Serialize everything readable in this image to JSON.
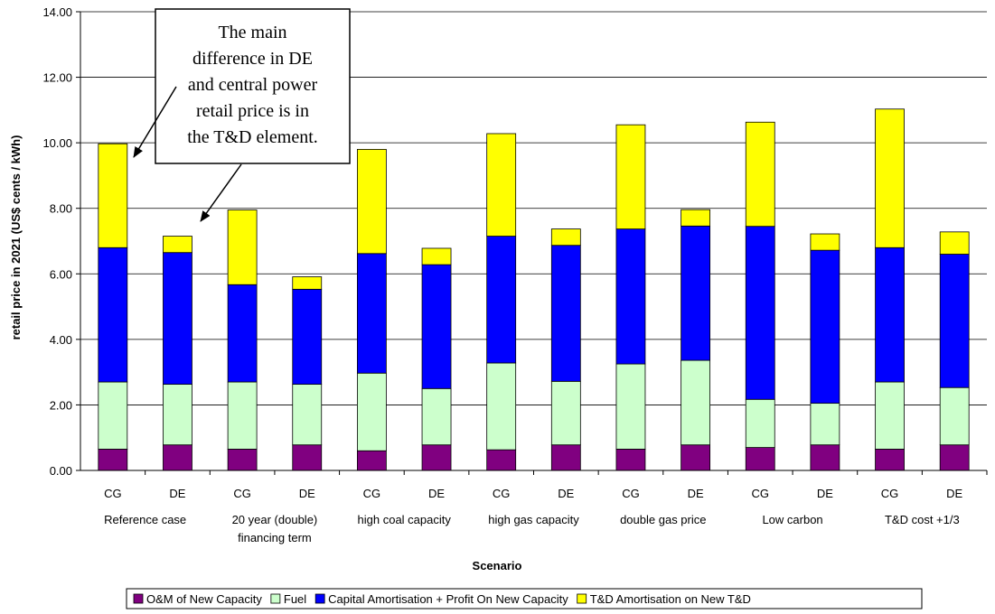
{
  "chart_data": {
    "type": "bar",
    "stacked": true,
    "ylabel": "retail price in 2021 (US$ cents / kWh)",
    "xlabel": "Scenario",
    "ylim": [
      0,
      14
    ],
    "ytick_step": 2,
    "ytick_labels": [
      "0.00",
      "2.00",
      "4.00",
      "6.00",
      "8.00",
      "10.00",
      "12.00",
      "14.00"
    ],
    "grid": true,
    "legend_position": "bottom",
    "categories": [
      {
        "label": "CG",
        "group": "Reference case"
      },
      {
        "label": "DE",
        "group": "Reference case"
      },
      {
        "label": "CG",
        "group": "20 year (double) financing term"
      },
      {
        "label": "DE",
        "group": "20 year (double) financing term"
      },
      {
        "label": "CG",
        "group": "high coal capacity"
      },
      {
        "label": "DE",
        "group": "high coal capacity"
      },
      {
        "label": "CG",
        "group": "high gas capacity"
      },
      {
        "label": "DE",
        "group": "high gas capacity"
      },
      {
        "label": "CG",
        "group": "double gas price"
      },
      {
        "label": "DE",
        "group": "double gas price"
      },
      {
        "label": "CG",
        "group": "Low carbon"
      },
      {
        "label": "DE",
        "group": "Low carbon"
      },
      {
        "label": "CG",
        "group": "T&D cost +1/3"
      },
      {
        "label": "DE",
        "group": "T&D cost +1/3"
      }
    ],
    "groups": [
      {
        "lines": [
          "Reference case"
        ]
      },
      {
        "lines": [
          "20 year (double)",
          "financing term"
        ]
      },
      {
        "lines": [
          "high coal capacity"
        ]
      },
      {
        "lines": [
          "high gas capacity"
        ]
      },
      {
        "lines": [
          "double gas price"
        ]
      },
      {
        "lines": [
          "Low carbon"
        ]
      },
      {
        "lines": [
          "T&D cost +1/3"
        ]
      }
    ],
    "series": [
      {
        "name": "O&M of New Capacity",
        "color": "#800080",
        "values": [
          0.65,
          0.78,
          0.65,
          0.78,
          0.6,
          0.78,
          0.63,
          0.78,
          0.65,
          0.78,
          0.7,
          0.78,
          0.65,
          0.78
        ]
      },
      {
        "name": "Fuel",
        "color": "#ccffcc",
        "values": [
          2.05,
          1.85,
          2.05,
          1.85,
          2.37,
          1.72,
          2.65,
          1.94,
          2.6,
          2.58,
          1.47,
          1.27,
          2.05,
          1.75
        ]
      },
      {
        "name": "Capital Amortisation + Profit On New Capacity",
        "color": "#0000ff",
        "values": [
          4.1,
          4.02,
          2.97,
          2.9,
          3.65,
          3.78,
          3.87,
          4.15,
          4.12,
          4.1,
          5.28,
          4.67,
          4.1,
          4.07
        ]
      },
      {
        "name": "T&D Amortisation on New T&D",
        "color": "#ffff00",
        "values": [
          3.17,
          0.5,
          2.28,
          0.38,
          3.18,
          0.5,
          3.13,
          0.5,
          3.18,
          0.5,
          3.18,
          0.5,
          4.23,
          0.68
        ]
      }
    ],
    "annotation": {
      "lines": [
        "The main",
        "difference in DE",
        "and central power",
        "retail price is in",
        "the T&D element."
      ]
    }
  }
}
